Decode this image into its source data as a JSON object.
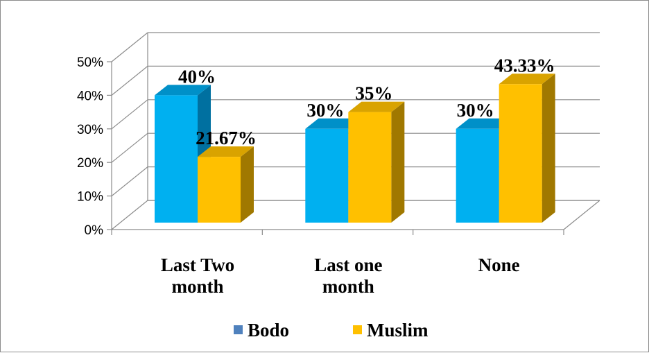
{
  "chart_data": {
    "type": "bar",
    "categories": [
      [
        "Last Two",
        "month"
      ],
      [
        "Last one",
        "month"
      ],
      [
        "None"
      ]
    ],
    "series": [
      {
        "name": "Bodo",
        "values": [
          40,
          30,
          30
        ],
        "labels": [
          "40%",
          "30%",
          "30%"
        ]
      },
      {
        "name": "Muslim",
        "values": [
          21.67,
          35,
          43.33
        ],
        "labels": [
          "21.67%",
          "35%",
          "43.33%"
        ]
      }
    ],
    "y_ticks": [
      "0%",
      "10%",
      "20%",
      "30%",
      "40%",
      "50%"
    ],
    "ylim": [
      0,
      50
    ],
    "grid": true,
    "legend": "bottom",
    "colors": {
      "bodo_front": "#00b0f0",
      "bodo_top": "#0090c8",
      "bodo_side": "#0070a0",
      "bodo_legend": "#4f81bd",
      "muslim_front": "#ffc000",
      "muslim_top": "#d9a300",
      "muslim_side": "#a07800",
      "muslim_legend": "#ffc000",
      "grid": "#8c8c8c"
    }
  }
}
